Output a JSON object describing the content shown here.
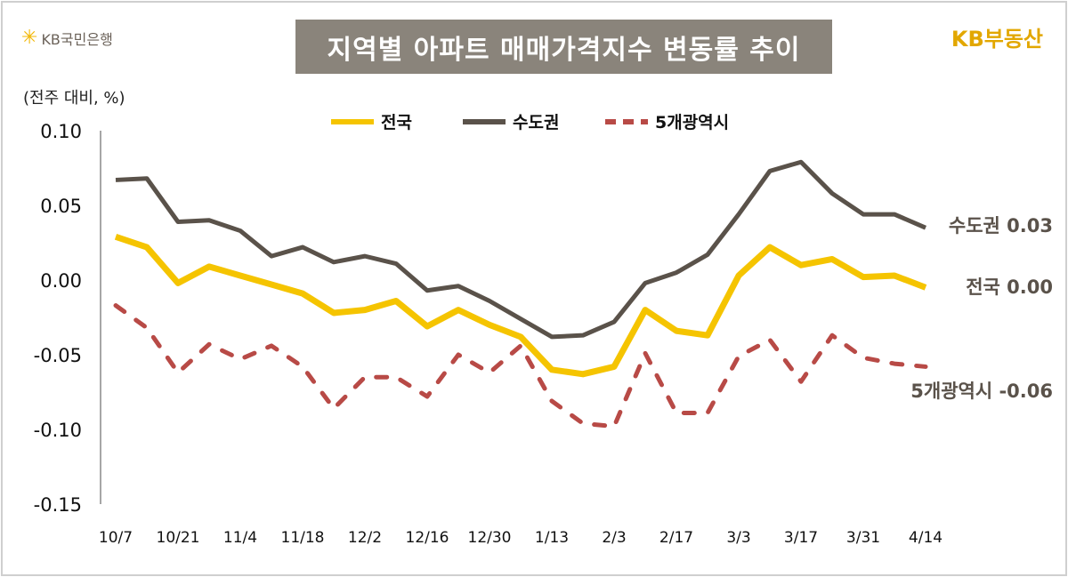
{
  "header": {
    "bank_logo": "KB국민은행",
    "brand_logo": "KB부동산",
    "title": "지역별 아파트 매매가격지수 변동률 추이",
    "unit": "(전주 대비, %)"
  },
  "chart_data": {
    "type": "line",
    "title": "지역별 아파트 매매가격지수 변동률 추이",
    "ylabel": "(전주 대비, %)",
    "ylim": [
      -0.15,
      0.1
    ],
    "yticks": [
      "0.10",
      "0.05",
      "0.00",
      "-0.05",
      "-0.10",
      "-0.15"
    ],
    "ytick_values": [
      0.1,
      0.05,
      0.0,
      -0.05,
      -0.1,
      -0.15
    ],
    "x": [
      "10/7",
      "10/14",
      "10/21",
      "10/28",
      "11/4",
      "11/11",
      "11/18",
      "11/25",
      "12/2",
      "12/9",
      "12/16",
      "12/23",
      "12/30",
      "1/6",
      "1/13",
      "1/20",
      "2/3",
      "2/10",
      "2/17",
      "2/24",
      "3/3",
      "3/10",
      "3/17",
      "3/24",
      "3/31",
      "4/7",
      "4/14"
    ],
    "xtick_labels": [
      "10/7",
      "10/21",
      "11/4",
      "11/18",
      "12/2",
      "12/16",
      "12/30",
      "1/13",
      "2/3",
      "2/17",
      "3/3",
      "3/17",
      "3/31",
      "4/14"
    ],
    "legend_position": "top-center",
    "series": [
      {
        "name": "전국",
        "color": "#f5c400",
        "style": "solid",
        "end_label": "전국 0.00",
        "values": [
          0.029,
          0.022,
          -0.002,
          0.009,
          0.003,
          -0.003,
          -0.009,
          -0.022,
          -0.02,
          -0.014,
          -0.031,
          -0.02,
          -0.03,
          -0.038,
          -0.06,
          -0.063,
          -0.058,
          -0.02,
          -0.034,
          -0.037,
          0.003,
          0.022,
          0.01,
          0.014,
          0.002,
          0.003,
          -0.005
        ]
      },
      {
        "name": "수도권",
        "color": "#5a524a",
        "style": "solid",
        "end_label": "수도권 0.03",
        "values": [
          0.067,
          0.068,
          0.039,
          0.04,
          0.033,
          0.016,
          0.022,
          0.012,
          0.016,
          0.011,
          -0.007,
          -0.004,
          -0.014,
          -0.026,
          -0.038,
          -0.037,
          -0.028,
          -0.002,
          0.005,
          0.017,
          0.044,
          0.073,
          0.079,
          0.058,
          0.044,
          0.044,
          0.035
        ]
      },
      {
        "name": "5개광역시",
        "color": "#b84a46",
        "style": "dashed",
        "end_label": "5개광역시 -0.06",
        "values": [
          -0.017,
          -0.032,
          -0.062,
          -0.043,
          -0.053,
          -0.044,
          -0.058,
          -0.086,
          -0.065,
          -0.065,
          -0.078,
          -0.05,
          -0.062,
          -0.044,
          -0.081,
          -0.096,
          -0.098,
          -0.049,
          -0.089,
          -0.089,
          -0.051,
          -0.04,
          -0.068,
          -0.037,
          -0.052,
          -0.056,
          -0.058
        ]
      }
    ]
  }
}
